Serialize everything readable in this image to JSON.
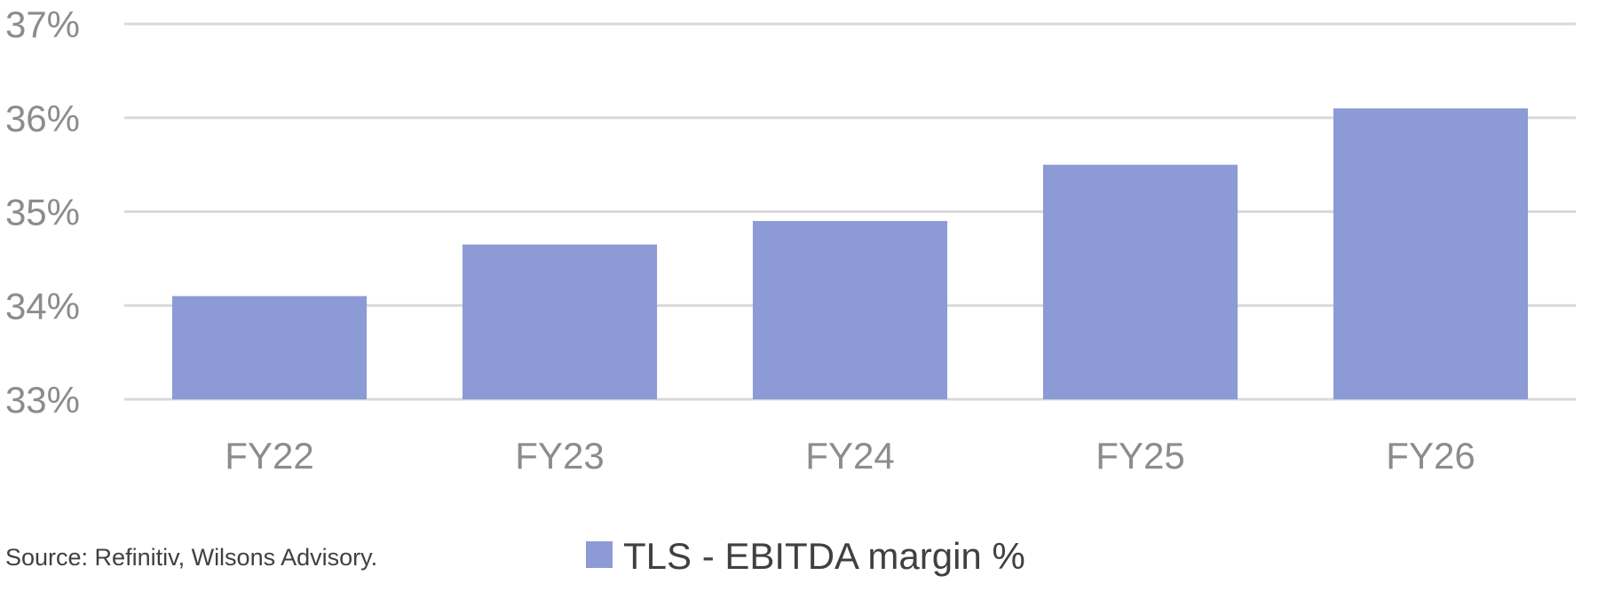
{
  "chart_data": {
    "type": "bar",
    "title": "",
    "xlabel": "",
    "ylabel": "",
    "categories": [
      "FY22",
      "FY23",
      "FY24",
      "FY25",
      "FY26"
    ],
    "series": [
      {
        "name": "TLS - EBITDA margin %",
        "values": [
          34.1,
          34.65,
          34.9,
          35.5,
          36.1
        ],
        "color": "#8c9ad5"
      }
    ],
    "ylim": [
      33,
      37
    ],
    "yticks": [
      33,
      34,
      35,
      36,
      37
    ],
    "ytick_labels": [
      "33%",
      "34%",
      "35%",
      "36%",
      "37%"
    ],
    "grid": true,
    "legend": "bottom-center"
  },
  "footer": {
    "source": "Source: Refinitiv, Wilsons Advisory."
  }
}
